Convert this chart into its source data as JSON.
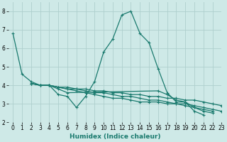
{
  "xlabel": "Humidex (Indice chaleur)",
  "xlim": [
    -0.5,
    23
  ],
  "ylim": [
    2,
    8.5
  ],
  "yticks": [
    2,
    3,
    4,
    5,
    6,
    7,
    8
  ],
  "xticks": [
    0,
    1,
    2,
    3,
    4,
    5,
    6,
    7,
    8,
    9,
    10,
    11,
    12,
    13,
    14,
    15,
    16,
    17,
    18,
    19,
    20,
    21,
    22,
    23
  ],
  "bg_color": "#cee9e7",
  "line_color": "#1a7a6e",
  "grid_color": "#aecfcd",
  "series": [
    [
      6.8,
      4.6,
      4.2,
      4.0,
      4.0,
      3.5,
      3.4,
      2.8,
      3.4,
      4.2,
      5.8,
      6.5,
      7.8,
      8.0,
      6.8,
      6.3,
      4.9,
      3.6,
      3.1,
      3.1,
      2.6,
      2.4,
      null,
      null
    ],
    [
      null,
      null,
      4.1,
      4.0,
      4.0,
      3.8,
      3.6,
      null,
      null,
      null,
      null,
      null,
      null,
      null,
      null,
      null,
      3.7,
      3.5,
      3.2,
      3.1,
      2.8,
      2.6,
      2.5,
      null
    ],
    [
      null,
      null,
      4.1,
      4.0,
      4.0,
      3.9,
      3.8,
      3.7,
      3.6,
      3.5,
      3.4,
      3.3,
      3.3,
      3.2,
      3.1,
      3.1,
      3.1,
      3.0,
      3.0,
      2.9,
      2.8,
      2.7,
      2.6,
      null
    ],
    [
      null,
      null,
      4.1,
      4.0,
      4.0,
      3.9,
      3.8,
      3.8,
      3.7,
      3.6,
      3.6,
      3.5,
      3.4,
      3.4,
      3.3,
      3.2,
      3.2,
      3.1,
      3.0,
      3.0,
      2.9,
      2.8,
      2.7,
      2.6
    ],
    [
      null,
      null,
      4.1,
      4.0,
      4.0,
      3.9,
      3.9,
      3.8,
      3.8,
      3.7,
      3.7,
      3.6,
      3.6,
      3.5,
      3.5,
      3.4,
      3.4,
      3.3,
      3.3,
      3.2,
      3.2,
      3.1,
      3.0,
      2.9
    ]
  ],
  "marker": "+",
  "markersize": 3,
  "linewidth": 0.9,
  "label_fontsize": 6.5,
  "tick_fontsize": 5.5
}
